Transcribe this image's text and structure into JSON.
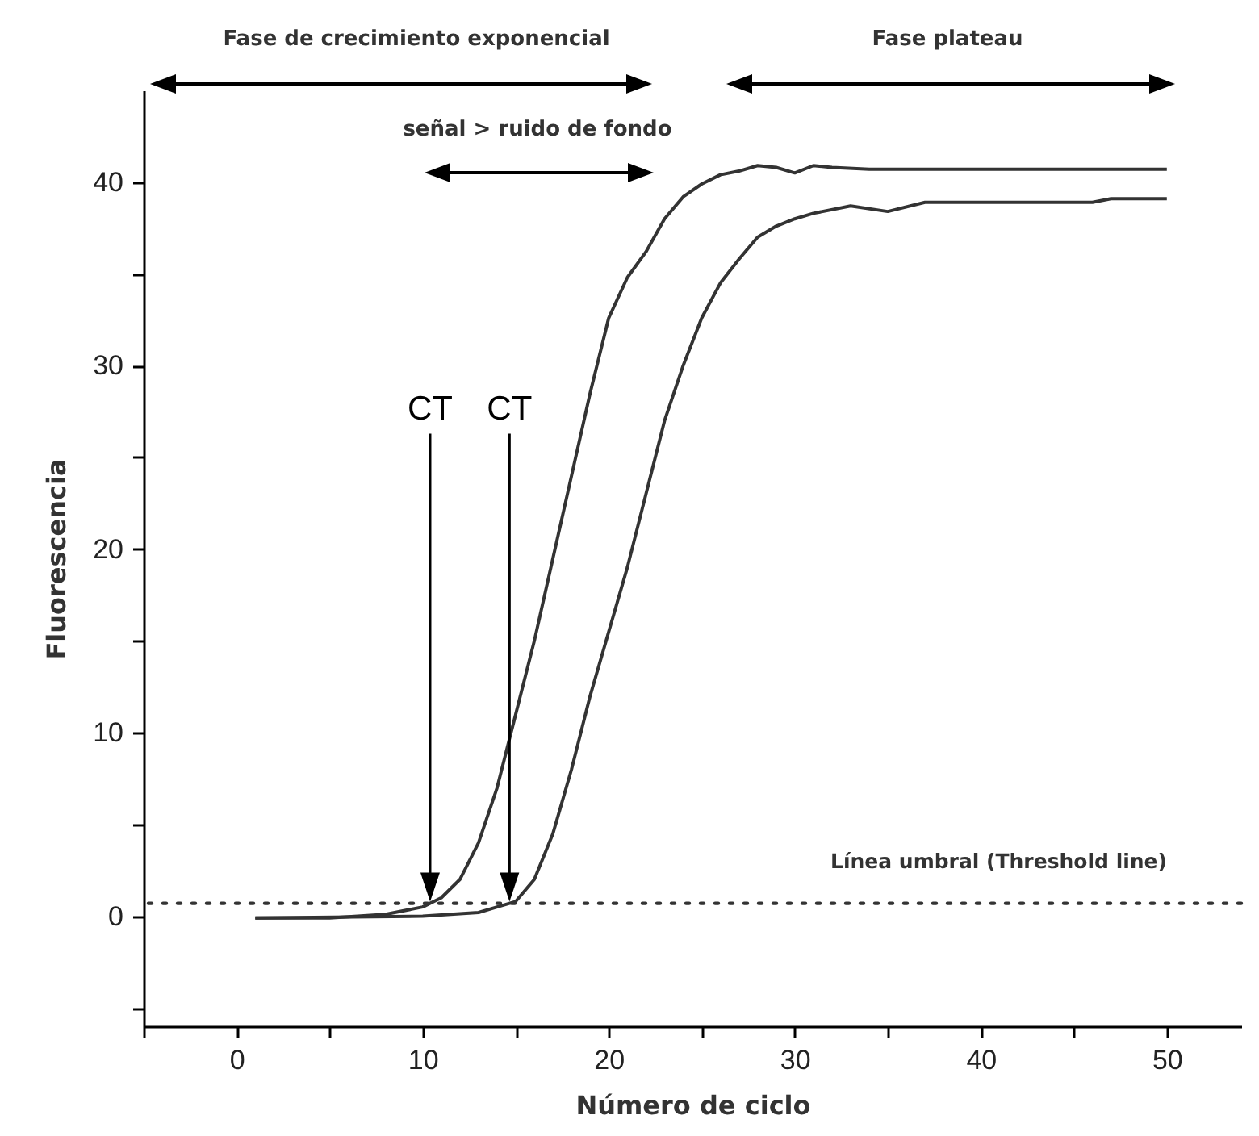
{
  "chart_data": {
    "type": "line",
    "xlabel": "Número de ciclo",
    "ylabel": "Fluorescencia",
    "xlim": [
      -5,
      54
    ],
    "ylim": [
      -6,
      45
    ],
    "xticks": [
      {
        "value": -5,
        "label": null
      },
      0,
      {
        "value": 5,
        "label": null
      },
      10,
      {
        "value": 15,
        "label": null
      },
      20,
      {
        "value": 25,
        "label": null
      },
      30,
      {
        "value": 35,
        "label": null
      },
      40,
      {
        "value": 45,
        "label": null
      },
      50
    ],
    "yticks": [
      {
        "value": -5,
        "label": null
      },
      0,
      {
        "value": 5,
        "label": null
      },
      10,
      {
        "value": 15,
        "label": null
      },
      20,
      {
        "value": 25,
        "label": null
      },
      30,
      {
        "value": 35,
        "label": null
      },
      40
    ],
    "grid": false,
    "line_style": "solid",
    "series": [
      {
        "color": "#333333",
        "x": [
          1,
          5,
          8,
          10,
          11,
          12,
          13,
          14,
          15,
          16,
          17,
          18,
          19,
          20,
          21,
          22,
          23,
          24,
          25,
          26,
          27,
          28,
          29,
          30,
          31,
          32,
          34,
          50
        ],
        "values": [
          -0.1,
          -0.1,
          0.1,
          0.5,
          1.0,
          2.0,
          4.0,
          7.0,
          11.0,
          15.0,
          19.5,
          24.0,
          28.5,
          32.6,
          34.8,
          36.2,
          38.0,
          39.2,
          39.9,
          40.4,
          40.6,
          40.9,
          40.8,
          40.5,
          40.9,
          40.8,
          40.7,
          40.7
        ]
      },
      {
        "color": "#333333",
        "x": [
          1,
          10,
          13,
          14,
          15,
          16,
          17,
          18,
          19,
          20,
          21,
          22,
          23,
          24,
          25,
          26,
          27,
          28,
          29,
          30,
          31,
          33,
          35,
          37,
          46,
          47,
          50
        ],
        "values": [
          -0.1,
          0,
          0.2,
          0.5,
          0.8,
          2.0,
          4.5,
          8.0,
          12.0,
          15.5,
          19.0,
          23.0,
          27.0,
          30.0,
          32.6,
          34.5,
          35.8,
          37.0,
          37.6,
          38.0,
          38.3,
          38.7,
          38.4,
          38.9,
          38.9,
          39.1,
          39.1
        ]
      }
    ],
    "ref_lines": [
      {
        "axis": "y",
        "value": 0.7,
        "label": "Línea umbral (Threshold line)",
        "color": "#333333",
        "line_style": "dotted"
      }
    ],
    "annotations": [
      "Fase de crecimiento exponencial",
      "señal > ruido de fondo",
      "Fase plateau",
      "CT",
      "CT"
    ]
  }
}
